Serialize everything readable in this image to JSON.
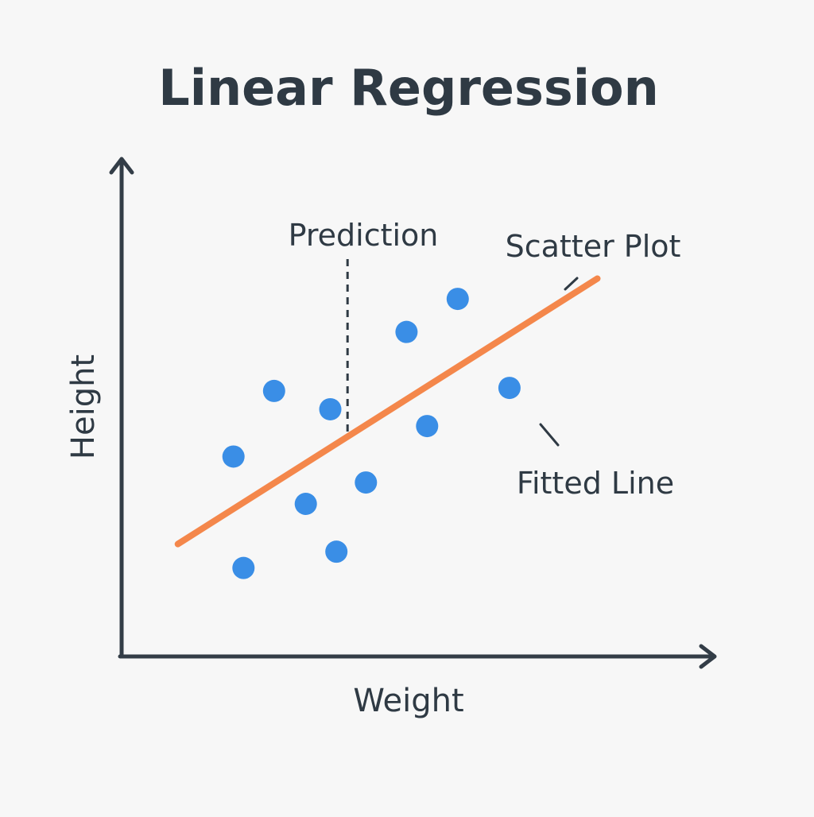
{
  "chart_data": {
    "type": "scatter",
    "title": "Linear Regression",
    "xlabel": "Weight",
    "ylabel": "Height",
    "xlim": [
      0,
      100
    ],
    "ylim": [
      0,
      100
    ],
    "grid": false,
    "points": [
      {
        "x": 20.1,
        "y": 39.3
      },
      {
        "x": 21.9,
        "y": 17.4
      },
      {
        "x": 27.4,
        "y": 52.2
      },
      {
        "x": 33.1,
        "y": 30.0
      },
      {
        "x": 37.5,
        "y": 48.6
      },
      {
        "x": 38.6,
        "y": 20.6
      },
      {
        "x": 43.9,
        "y": 34.2
      },
      {
        "x": 51.2,
        "y": 63.8
      },
      {
        "x": 54.9,
        "y": 45.3
      },
      {
        "x": 60.4,
        "y": 70.3
      },
      {
        "x": 69.7,
        "y": 52.8
      }
    ],
    "fit_line": {
      "x": [
        10.1,
        85.5
      ],
      "y": [
        22.1,
        74.3
      ]
    },
    "prediction_x": 40.6,
    "colors": {
      "points": "#3a8ee6",
      "fit_line": "#f4874b",
      "axes": "#333d47",
      "text": "#2f3a44",
      "background": "#f7f7f7"
    },
    "annotations": {
      "prediction": "Prediction",
      "scatter_plot": "Scatter Plot",
      "fitted_line": "Fitted Line"
    }
  }
}
